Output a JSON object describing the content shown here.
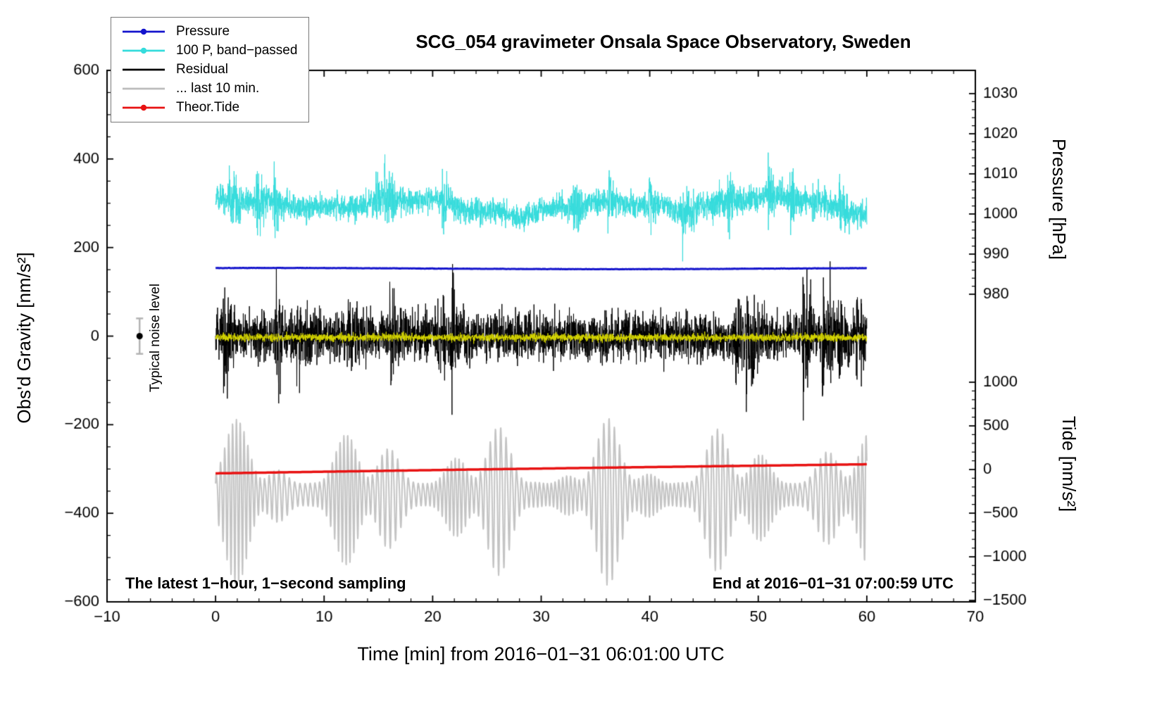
{
  "title": "SCG_054 gravimeter Onsala Space Observatory, Sweden",
  "annotations": {
    "noise_label": "Typical noise level",
    "bottom_left": "The latest 1−hour, 1−second sampling",
    "bottom_right": "End at 2016−01−31 07:00:59 UTC"
  },
  "legend": {
    "items": [
      {
        "label": "Pressure",
        "color": "#1414cc",
        "marker": "dot-line"
      },
      {
        "label": "100 P, band−passed",
        "color": "#35dcdc",
        "marker": "dot-line"
      },
      {
        "label": "Residual",
        "color": "#000000",
        "marker": "line"
      },
      {
        "label": "... last 10 min.",
        "color": "#bdbdbd",
        "marker": "line"
      },
      {
        "label": "Theor.Tide",
        "color": "#e81212",
        "marker": "dot-line"
      }
    ]
  },
  "axes": {
    "x": {
      "label": "Time [min] from 2016−01−31 06:01:00 UTC",
      "min": -10,
      "max": 70,
      "major_ticks": [
        -10,
        0,
        10,
        20,
        30,
        40,
        50,
        60,
        70
      ],
      "minor_step": 2
    },
    "gravity": {
      "label": "Obs'd Gravity [nm/s²]",
      "min": -600,
      "max": 600,
      "major_ticks": [
        600,
        400,
        200,
        0,
        -200,
        -400,
        -600
      ],
      "minor_step": 50
    },
    "pressure": {
      "label": "Pressure [hPa]",
      "ticks": [
        1030,
        1020,
        1010,
        1000,
        990,
        980
      ],
      "minor_step": 2,
      "range": [
        980,
        1030
      ]
    },
    "tide": {
      "label": "Tide [nm/s²]",
      "ticks": [
        1000,
        500,
        0,
        -500,
        -1000,
        -1500
      ],
      "minor_step": 100,
      "range": [
        -1500,
        1000
      ]
    }
  },
  "chart_data": {
    "type": "line",
    "title": "SCG_054 gravimeter Onsala Space Observatory, Sweden",
    "x_units": "min",
    "t_start": 0,
    "t_end": 60,
    "sampling": "1-second",
    "series": [
      {
        "name": "Pressure",
        "axis": "pressure",
        "color": "#1414cc",
        "linewidth": 3,
        "baseline_hPa": 986.4,
        "variation_hPa": 0.3,
        "seed": 101
      },
      {
        "name": "100 P, band-passed",
        "axis": "gravity",
        "color": "#35dcdc",
        "linewidth": 1,
        "mean": 295,
        "typical_range": [
          235,
          360
        ],
        "peak_range": [
          205,
          425
        ],
        "seed": 202
      },
      {
        "name": "Residual",
        "axis": "gravity",
        "color": "#000000",
        "linewidth": 1,
        "mean": 0,
        "typical_range": [
          -110,
          110
        ],
        "peak_range": [
          -212,
          213
        ],
        "seed": 303
      },
      {
        "name": "Residual band-passed (yellow)",
        "axis": "gravity",
        "color": "#d6d600",
        "linewidth": 1,
        "mean": -3,
        "typical_range": [
          -14,
          10
        ],
        "seed": 404
      },
      {
        "name": "Residual ... last 10 min.",
        "axis": "tide",
        "color": "#c4c4c4",
        "linewidth": 2,
        "mean": -275,
        "osc_period_min": 0.42,
        "amp_range": [
          120,
          900
        ],
        "seed": 505
      },
      {
        "name": "Theor.Tide",
        "axis": "tide",
        "color": "#e81212",
        "linewidth": 3.5,
        "start_value": -44,
        "end_value": 60
      }
    ],
    "noise_marker": {
      "x": -7,
      "value": 0,
      "error": 40,
      "bar_color": "#b3b3b3",
      "dot_color": "#000000"
    }
  }
}
